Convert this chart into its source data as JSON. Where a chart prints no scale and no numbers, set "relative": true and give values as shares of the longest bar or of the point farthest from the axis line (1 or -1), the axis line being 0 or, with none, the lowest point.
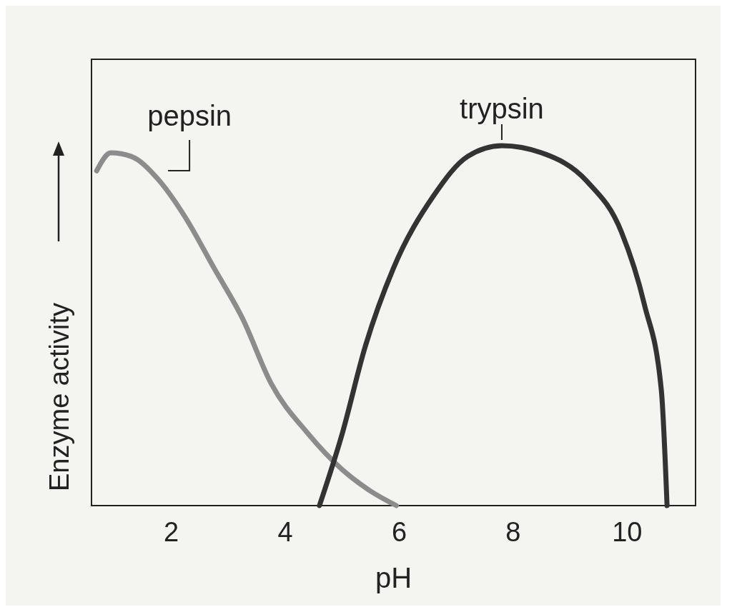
{
  "chart_data": {
    "type": "line",
    "xlabel": "pH",
    "ylabel": "Enzyme activity",
    "relative": true,
    "xlim": [
      0.6,
      11.2
    ],
    "xticks": [
      2,
      4,
      6,
      8,
      10
    ],
    "grid": false,
    "line_style": "solid",
    "series": [
      {
        "name": "pepsin",
        "color": "#8c8c8c",
        "x": [
          0.69,
          0.94,
          1.3,
          1.75,
          2.25,
          2.75,
          3.25,
          3.75,
          4.4,
          5.0,
          5.5,
          5.95
        ],
        "values": [
          0.93,
          0.98,
          0.97,
          0.91,
          0.8,
          0.66,
          0.52,
          0.34,
          0.2,
          0.1,
          0.04,
          0
        ]
      },
      {
        "name": "trypsin",
        "color": "#333333",
        "x": [
          4.6,
          5.0,
          5.4,
          5.9,
          6.6,
          7.2,
          7.8,
          8.5,
          9.3,
          9.9,
          10.3,
          10.6,
          10.7
        ],
        "values": [
          0,
          0.2,
          0.44,
          0.66,
          0.86,
          0.97,
          1.0,
          0.98,
          0.9,
          0.76,
          0.56,
          0.32,
          0
        ]
      }
    ]
  }
}
